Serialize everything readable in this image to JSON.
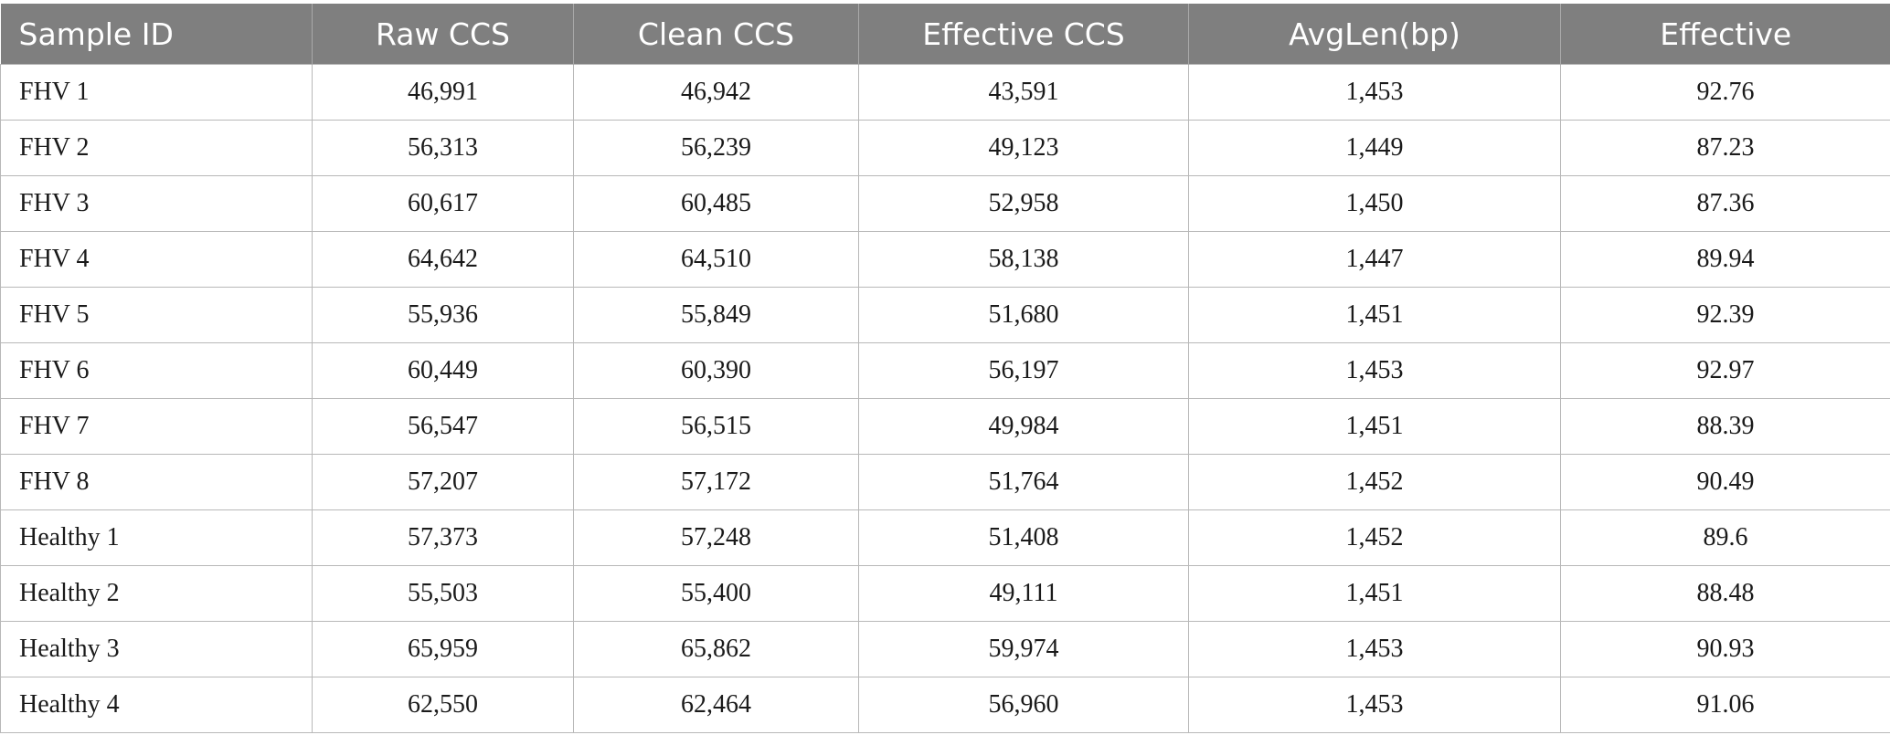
{
  "table": {
    "headers": [
      "Sample ID",
      "Raw CCS",
      "Clean CCS",
      "Effective CCS",
      "AvgLen(bp)",
      "Effective"
    ],
    "rows": [
      [
        "FHV 1",
        "46,991",
        "46,942",
        "43,591",
        "1,453",
        "92.76"
      ],
      [
        "FHV 2",
        "56,313",
        "56,239",
        "49,123",
        "1,449",
        "87.23"
      ],
      [
        "FHV 3",
        "60,617",
        "60,485",
        "52,958",
        "1,450",
        "87.36"
      ],
      [
        "FHV 4",
        "64,642",
        "64,510",
        "58,138",
        "1,447",
        "89.94"
      ],
      [
        "FHV 5",
        "55,936",
        "55,849",
        "51,680",
        "1,451",
        "92.39"
      ],
      [
        "FHV 6",
        "60,449",
        "60,390",
        "56,197",
        "1,453",
        "92.97"
      ],
      [
        "FHV 7",
        "56,547",
        "56,515",
        "49,984",
        "1,451",
        "88.39"
      ],
      [
        "FHV 8",
        "57,207",
        "57,172",
        "51,764",
        "1,452",
        "90.49"
      ],
      [
        "Healthy 1",
        "57,373",
        "57,248",
        "51,408",
        "1,452",
        "89.6"
      ],
      [
        "Healthy 2",
        "55,503",
        "55,400",
        "49,111",
        "1,451",
        "88.48"
      ],
      [
        "Healthy 3",
        "65,959",
        "65,862",
        "59,974",
        "1,453",
        "90.93"
      ],
      [
        "Healthy 4",
        "62,550",
        "62,464",
        "56,960",
        "1,453",
        "91.06"
      ]
    ]
  }
}
